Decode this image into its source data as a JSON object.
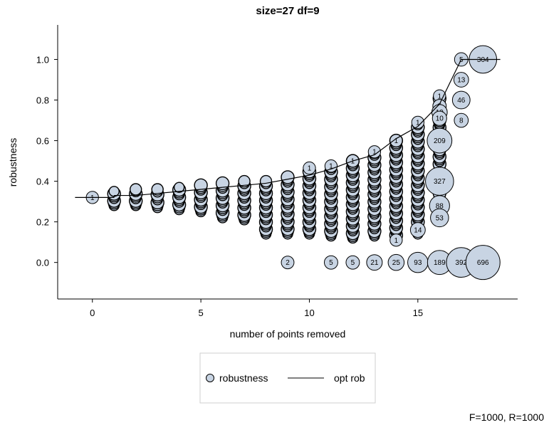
{
  "chart_data": {
    "type": "scatter",
    "title": "size=27 df=9",
    "xlabel": "number of points removed",
    "ylabel": "robustness",
    "xlim": [
      -1.6,
      19.6
    ],
    "ylim": [
      -0.18,
      1.17
    ],
    "xticks": [
      "0",
      "5",
      "10",
      "15"
    ],
    "yticks": [
      "0.0",
      "0.2",
      "0.4",
      "0.6",
      "0.8",
      "1.0"
    ],
    "legend_position": "bottom",
    "footer": "F=1000, R=1000",
    "colors": {
      "bubble_fill": "#c8d4e3",
      "bubble_stroke": "#000000",
      "line": "#000000"
    },
    "series": [
      {
        "name": "robustness",
        "kind": "bubble"
      },
      {
        "name": "opt rob",
        "kind": "step-line"
      }
    ],
    "opt_rob": [
      [
        -0.8,
        0.32
      ],
      [
        1,
        0.32
      ],
      [
        1,
        0.33
      ],
      [
        2,
        0.33
      ],
      [
        3,
        0.34
      ],
      [
        4,
        0.35
      ],
      [
        5,
        0.36
      ],
      [
        6,
        0.37
      ],
      [
        7,
        0.38
      ],
      [
        8,
        0.39
      ],
      [
        9,
        0.41
      ],
      [
        10,
        0.43
      ],
      [
        11,
        0.46
      ],
      [
        12,
        0.5
      ],
      [
        13,
        0.53
      ],
      [
        14,
        0.61
      ],
      [
        15,
        0.67
      ],
      [
        16,
        0.78
      ],
      [
        17,
        1.0
      ],
      [
        18.8,
        1.0
      ]
    ],
    "clusters": [
      {
        "x": 1,
        "ymin": 0.28,
        "ymax": 0.35
      },
      {
        "x": 2,
        "ymin": 0.28,
        "ymax": 0.36
      },
      {
        "x": 3,
        "ymin": 0.27,
        "ymax": 0.36
      },
      {
        "x": 4,
        "ymin": 0.26,
        "ymax": 0.37
      },
      {
        "x": 5,
        "ymin": 0.25,
        "ymax": 0.38
      },
      {
        "x": 6,
        "ymin": 0.22,
        "ymax": 0.39
      },
      {
        "x": 7,
        "ymin": 0.21,
        "ymax": 0.4
      },
      {
        "x": 8,
        "ymin": 0.14,
        "ymax": 0.4
      },
      {
        "x": 9,
        "ymin": 0.14,
        "ymax": 0.42
      },
      {
        "x": 10,
        "ymin": 0.14,
        "ymax": 0.46
      },
      {
        "x": 11,
        "ymin": 0.13,
        "ymax": 0.47
      },
      {
        "x": 12,
        "ymin": 0.12,
        "ymax": 0.5
      },
      {
        "x": 13,
        "ymin": 0.13,
        "ymax": 0.54
      },
      {
        "x": 14,
        "ymin": 0.11,
        "ymax": 0.6
      },
      {
        "x": 15,
        "ymin": 0.14,
        "ymax": 0.69
      },
      {
        "x": 16,
        "ymin": 0.21,
        "ymax": 0.82
      }
    ],
    "bubbles": [
      {
        "x": 0,
        "y": 0.32,
        "label": "1"
      },
      {
        "x": 9,
        "y": 0.0,
        "label": "2"
      },
      {
        "x": 11,
        "y": 0.0,
        "label": "5"
      },
      {
        "x": 12,
        "y": 0.0,
        "label": "5"
      },
      {
        "x": 13,
        "y": 0.0,
        "label": "21"
      },
      {
        "x": 14,
        "y": 0.0,
        "label": "25"
      },
      {
        "x": 15,
        "y": 0.0,
        "label": "93"
      },
      {
        "x": 16,
        "y": 0.0,
        "label": "189"
      },
      {
        "x": 17,
        "y": 0.0,
        "label": "392"
      },
      {
        "x": 18,
        "y": 0.0,
        "label": "696"
      },
      {
        "x": 10,
        "y": 0.465,
        "label": "1"
      },
      {
        "x": 11,
        "y": 0.475,
        "label": "1"
      },
      {
        "x": 12,
        "y": 0.5,
        "label": "1"
      },
      {
        "x": 13,
        "y": 0.545,
        "label": "1"
      },
      {
        "x": 14,
        "y": 0.6,
        "label": "1"
      },
      {
        "x": 14,
        "y": 0.11,
        "label": "1"
      },
      {
        "x": 15,
        "y": 0.69,
        "label": "1"
      },
      {
        "x": 15,
        "y": 0.16,
        "label": "14"
      },
      {
        "x": 16,
        "y": 0.82,
        "label": "1"
      },
      {
        "x": 16,
        "y": 0.77,
        "label": "5"
      },
      {
        "x": 16,
        "y": 0.74,
        "label": "19"
      },
      {
        "x": 16,
        "y": 0.71,
        "label": "10"
      },
      {
        "x": 16,
        "y": 0.28,
        "label": "88"
      },
      {
        "x": 16,
        "y": 0.22,
        "label": "53"
      },
      {
        "x": 16,
        "y": 0.4,
        "label": "327"
      },
      {
        "x": 16,
        "y": 0.6,
        "label": "209"
      },
      {
        "x": 17,
        "y": 1.0,
        "label": "5"
      },
      {
        "x": 18,
        "y": 1.0,
        "label": "304"
      },
      {
        "x": 17,
        "y": 0.9,
        "label": "13"
      },
      {
        "x": 17,
        "y": 0.8,
        "label": "46"
      },
      {
        "x": 17,
        "y": 0.7,
        "label": "8"
      }
    ]
  }
}
